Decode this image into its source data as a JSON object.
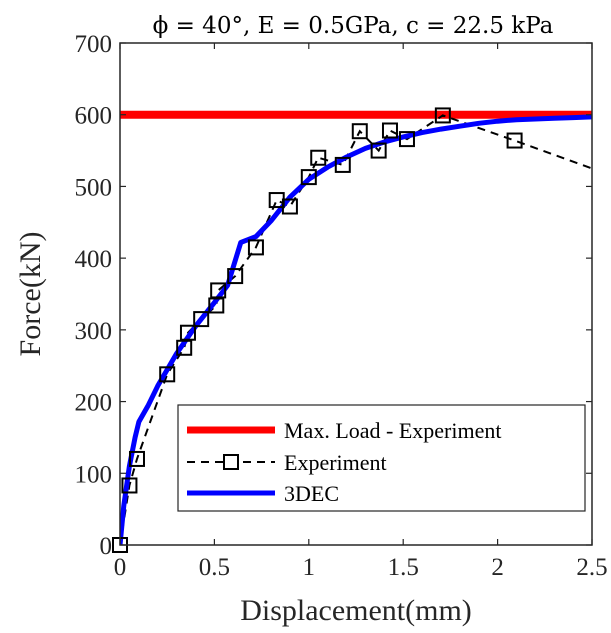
{
  "chart_data": {
    "type": "line",
    "title": "ϕ = 40°, E = 0.5GPa, c = 22.5 kPa",
    "xlabel": "Displacement(mm)",
    "ylabel": "Force(kN)",
    "xlim": [
      0,
      2.5
    ],
    "ylim": [
      0,
      700
    ],
    "xticks": [
      0,
      0.5,
      1,
      1.5,
      2,
      2.5
    ],
    "xtick_labels": [
      "0",
      "0.5",
      "1",
      "1.5",
      "2",
      "2.5"
    ],
    "yticks": [
      0,
      100,
      200,
      300,
      400,
      500,
      600,
      700
    ],
    "ytick_labels": [
      "0",
      "100",
      "200",
      "300",
      "400",
      "500",
      "600",
      "700"
    ],
    "grid": false,
    "legend_position": "bottom-right",
    "series": [
      {
        "name": "Max. Load - Experiment",
        "color": "#ff0000",
        "style": "solid",
        "marker": "none",
        "x": [
          0,
          2.5
        ],
        "y": [
          600,
          600
        ]
      },
      {
        "name": "Experiment",
        "color": "#000000",
        "style": "dashed",
        "marker": "square",
        "x": [
          0,
          0.05,
          0.09,
          0.25,
          0.34,
          0.36,
          0.43,
          0.51,
          0.52,
          0.61,
          0.72,
          0.83,
          0.9,
          1,
          1.05,
          1.18,
          1.27,
          1.37,
          1.43,
          1.52,
          1.71,
          2.09,
          2.5
        ],
        "y": [
          0,
          83,
          120,
          238,
          275,
          296,
          315,
          334,
          355,
          375,
          415,
          481,
          472,
          513,
          540,
          530,
          577,
          550,
          578,
          566,
          599,
          564,
          525
        ]
      },
      {
        "name": "3DEC",
        "color": "#0000ff",
        "style": "solid",
        "marker": "none",
        "x": [
          0,
          0.02,
          0.05,
          0.08,
          0.1,
          0.15,
          0.2,
          0.3,
          0.4,
          0.5,
          0.57,
          0.64,
          0.72,
          0.8,
          0.9,
          1,
          1.1,
          1.2,
          1.3,
          1.4,
          1.5,
          1.6,
          1.7,
          1.8,
          1.9,
          2,
          2.1,
          2.2,
          2.3,
          2.4,
          2.5
        ],
        "y": [
          0,
          55,
          110,
          150,
          172,
          195,
          222,
          267,
          305,
          338,
          362,
          422,
          430,
          452,
          485,
          510,
          527,
          541,
          553,
          562,
          569,
          575,
          580,
          584,
          588,
          591,
          593,
          594,
          595,
          596,
          597
        ]
      }
    ]
  }
}
